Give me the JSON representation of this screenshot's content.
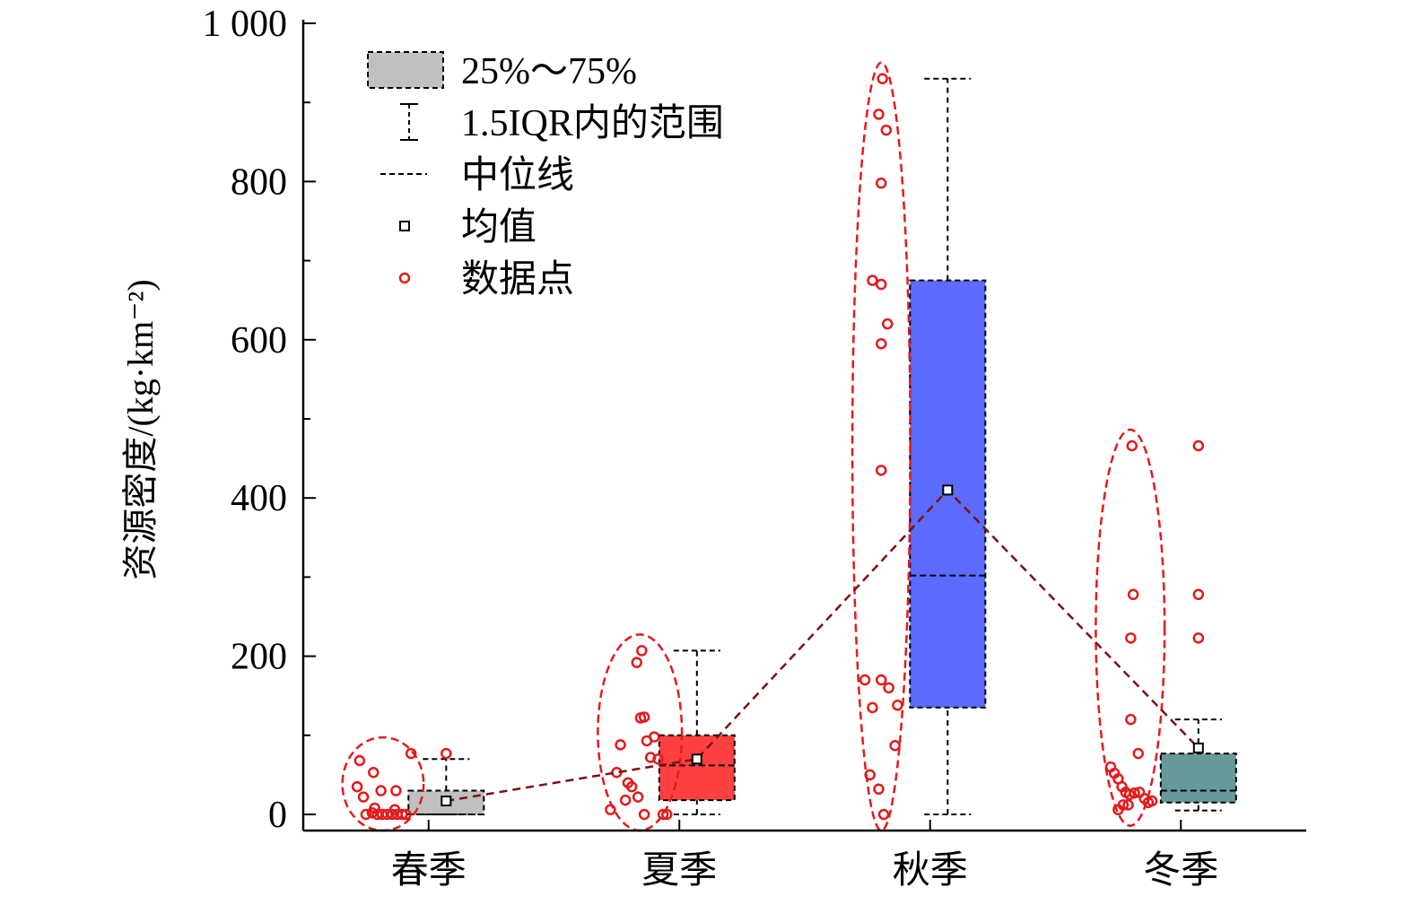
{
  "chart_data": {
    "type": "box",
    "ylabel": "资源密度/(kg·km⁻²)",
    "ylim": [
      0,
      1000
    ],
    "y_ticks": [
      0,
      200,
      400,
      600,
      800,
      1000
    ],
    "y_tick_labels": [
      "0",
      "200",
      "400",
      "600",
      "800",
      "1 000"
    ],
    "categories": [
      "春季",
      "夏季",
      "秋季",
      "冬季"
    ],
    "legend": {
      "placement": "top-left",
      "items": [
        {
          "key": "box",
          "label": "25%～75%"
        },
        {
          "key": "whisker",
          "label": "1.5IQR内的范围"
        },
        {
          "key": "median",
          "label": "中位线"
        },
        {
          "key": "mean",
          "label": "均值"
        },
        {
          "key": "points",
          "label": "数据点"
        }
      ]
    },
    "colors": {
      "points": "#e41a1c",
      "ellipse": "#e41a1c",
      "mean_line": "#7b1010",
      "boxes": [
        "#c0c0c0",
        "#ff4040",
        "#5b6cff",
        "#669a9a"
      ]
    },
    "series": [
      {
        "category": "春季",
        "q1": 0,
        "median": 0,
        "q3": 30,
        "whisker_low": 0,
        "whisker_high": 70,
        "mean": 17,
        "outliers": [
          77
        ],
        "points": [
          {
            "x": -0.55,
            "y": 68
          },
          {
            "x": -0.57,
            "y": 35
          },
          {
            "x": -0.52,
            "y": 22
          },
          {
            "x": -0.44,
            "y": 53
          },
          {
            "x": -0.38,
            "y": 30
          },
          {
            "x": -0.26,
            "y": 30
          },
          {
            "x": -0.14,
            "y": 77
          },
          {
            "x": -0.5,
            "y": 0
          },
          {
            "x": -0.45,
            "y": 2
          },
          {
            "x": -0.41,
            "y": 0
          },
          {
            "x": -0.37,
            "y": 0
          },
          {
            "x": -0.33,
            "y": 0
          },
          {
            "x": -0.29,
            "y": 0
          },
          {
            "x": -0.25,
            "y": 0
          },
          {
            "x": -0.21,
            "y": 0
          },
          {
            "x": -0.18,
            "y": 0
          },
          {
            "x": -0.43,
            "y": 8
          },
          {
            "x": -0.27,
            "y": 6
          }
        ]
      },
      {
        "category": "夏季",
        "q1": 18,
        "median": 62,
        "q3": 100,
        "whisker_low": 0,
        "whisker_high": 207,
        "mean": 70,
        "outliers": [],
        "points": [
          {
            "x": -0.55,
            "y": 6
          },
          {
            "x": -0.5,
            "y": 53
          },
          {
            "x": -0.47,
            "y": 88
          },
          {
            "x": -0.43,
            "y": 18
          },
          {
            "x": -0.41,
            "y": 40
          },
          {
            "x": -0.38,
            "y": 35
          },
          {
            "x": -0.33,
            "y": 22
          },
          {
            "x": -0.34,
            "y": 192
          },
          {
            "x": -0.3,
            "y": 207
          },
          {
            "x": -0.31,
            "y": 122
          },
          {
            "x": -0.28,
            "y": 123
          },
          {
            "x": -0.26,
            "y": 93
          },
          {
            "x": -0.23,
            "y": 72
          },
          {
            "x": -0.2,
            "y": 98
          },
          {
            "x": -0.17,
            "y": 70
          },
          {
            "x": -0.28,
            "y": 0
          },
          {
            "x": -0.13,
            "y": 0
          },
          {
            "x": -0.1,
            "y": 0
          }
        ]
      },
      {
        "category": "秋季",
        "q1": 135,
        "median": 302,
        "q3": 675,
        "whisker_low": 0,
        "whisker_high": 930,
        "mean": 410,
        "outliers": [],
        "points": [
          {
            "x": -0.52,
            "y": 170
          },
          {
            "x": -0.48,
            "y": 50
          },
          {
            "x": -0.46,
            "y": 135
          },
          {
            "x": -0.41,
            "y": 32
          },
          {
            "x": -0.37,
            "y": 0
          },
          {
            "x": -0.46,
            "y": 675
          },
          {
            "x": -0.41,
            "y": 885
          },
          {
            "x": -0.38,
            "y": 930
          },
          {
            "x": -0.35,
            "y": 865
          },
          {
            "x": -0.39,
            "y": 798
          },
          {
            "x": -0.39,
            "y": 670
          },
          {
            "x": -0.39,
            "y": 595
          },
          {
            "x": -0.34,
            "y": 620
          },
          {
            "x": -0.39,
            "y": 435
          },
          {
            "x": -0.39,
            "y": 170
          },
          {
            "x": -0.33,
            "y": 160
          },
          {
            "x": -0.26,
            "y": 138
          },
          {
            "x": -0.28,
            "y": 87
          }
        ]
      },
      {
        "category": "冬季",
        "q1": 15,
        "median": 30,
        "q3": 77,
        "whisker_low": 5,
        "whisker_high": 120,
        "mean": 84,
        "outliers": [
          223,
          278,
          466
        ],
        "points": [
          {
            "x": -0.56,
            "y": 60
          },
          {
            "x": -0.53,
            "y": 52
          },
          {
            "x": -0.5,
            "y": 45
          },
          {
            "x": -0.47,
            "y": 35
          },
          {
            "x": -0.44,
            "y": 28
          },
          {
            "x": -0.41,
            "y": 25
          },
          {
            "x": -0.37,
            "y": 27
          },
          {
            "x": -0.33,
            "y": 28
          },
          {
            "x": -0.29,
            "y": 20
          },
          {
            "x": -0.26,
            "y": 15
          },
          {
            "x": -0.23,
            "y": 17
          },
          {
            "x": -0.5,
            "y": 6
          },
          {
            "x": -0.46,
            "y": 12
          },
          {
            "x": -0.42,
            "y": 12
          },
          {
            "x": -0.4,
            "y": 223
          },
          {
            "x": -0.38,
            "y": 278
          },
          {
            "x": -0.39,
            "y": 466
          },
          {
            "x": -0.4,
            "y": 120
          },
          {
            "x": -0.34,
            "y": 77
          }
        ]
      }
    ],
    "mean_line": true
  }
}
